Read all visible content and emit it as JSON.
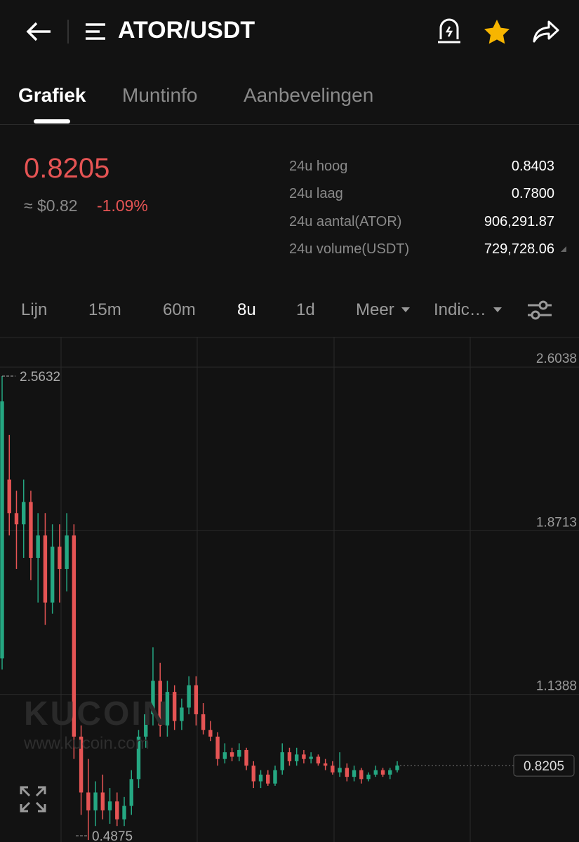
{
  "header": {
    "title": "ATOR/USDT"
  },
  "tabs": [
    "Grafiek",
    "Muntinfo",
    "Aanbevelingen"
  ],
  "price": {
    "last": "0.8205",
    "usd": "≈ $0.82",
    "change": "-1.09%"
  },
  "stats": [
    [
      "24u hoog",
      "0.8403"
    ],
    [
      "24u laag",
      "0.7800"
    ],
    [
      "24u aantal(ATOR)",
      "906,291.87"
    ],
    [
      "24u volume(USDT)",
      "729,728.06"
    ]
  ],
  "intervals": [
    "Lijn",
    "15m",
    "60m",
    "8u",
    "1d",
    "Meer",
    "Indic…"
  ],
  "watermark": {
    "brand": "KUCOIN",
    "url": "www.kucoin.com"
  },
  "chart_data": {
    "type": "candlestick",
    "ylim": [
      0.4785,
      2.739
    ],
    "yticks": [
      2.6038,
      1.8713,
      1.1388
    ],
    "grid": true,
    "up_color": "#25a782",
    "down_color": "#e55454",
    "open": [
      1.3,
      2.1,
      1.95,
      1.9,
      2.0,
      1.75,
      1.85,
      1.55,
      1.8,
      1.7,
      1.85,
      0.95,
      0.7,
      0.62,
      0.7,
      0.62,
      0.66,
      0.58,
      0.64,
      0.76,
      0.95,
      1.05,
      1.2,
      1.0,
      1.15,
      1.02,
      1.08,
      1.18,
      1.05,
      0.98,
      0.95,
      0.85,
      0.88,
      0.86,
      0.89,
      0.82,
      0.75,
      0.78,
      0.74,
      0.8,
      0.88,
      0.84,
      0.87,
      0.85,
      0.86,
      0.83,
      0.82,
      0.79,
      0.81,
      0.77,
      0.8,
      0.76,
      0.78,
      0.8,
      0.78,
      0.8
    ],
    "high": [
      2.5632,
      2.3,
      2.05,
      2.1,
      2.05,
      1.95,
      1.95,
      1.9,
      1.9,
      1.95,
      1.9,
      1.0,
      0.85,
      0.75,
      0.78,
      0.72,
      0.7,
      0.68,
      0.8,
      0.98,
      1.1,
      1.35,
      1.28,
      1.2,
      1.18,
      1.12,
      1.22,
      1.22,
      1.1,
      1.02,
      0.97,
      0.92,
      0.9,
      0.92,
      0.9,
      0.84,
      0.8,
      0.8,
      0.82,
      0.92,
      0.9,
      0.9,
      0.89,
      0.88,
      0.87,
      0.85,
      0.84,
      0.88,
      0.83,
      0.82,
      0.81,
      0.79,
      0.82,
      0.81,
      0.81,
      0.84
    ],
    "low": [
      1.25,
      1.85,
      1.7,
      1.75,
      1.65,
      1.55,
      1.45,
      1.5,
      1.55,
      1.6,
      0.85,
      0.6,
      0.4875,
      0.55,
      0.58,
      0.56,
      0.55,
      0.55,
      0.6,
      0.72,
      0.9,
      1.0,
      0.95,
      0.95,
      0.98,
      0.98,
      1.05,
      1.0,
      0.96,
      0.93,
      0.82,
      0.83,
      0.84,
      0.84,
      0.8,
      0.72,
      0.72,
      0.73,
      0.73,
      0.78,
      0.82,
      0.82,
      0.83,
      0.83,
      0.82,
      0.8,
      0.78,
      0.77,
      0.75,
      0.75,
      0.74,
      0.75,
      0.77,
      0.77,
      0.76,
      0.79
    ],
    "close": [
      2.45,
      1.95,
      1.9,
      2.0,
      1.75,
      1.85,
      1.55,
      1.8,
      1.7,
      1.85,
      0.95,
      0.7,
      0.62,
      0.7,
      0.62,
      0.66,
      0.58,
      0.64,
      0.76,
      0.95,
      1.05,
      1.2,
      1.0,
      1.15,
      1.02,
      1.08,
      1.18,
      1.05,
      0.98,
      0.95,
      0.85,
      0.88,
      0.86,
      0.89,
      0.82,
      0.75,
      0.78,
      0.74,
      0.8,
      0.88,
      0.84,
      0.87,
      0.85,
      0.86,
      0.83,
      0.82,
      0.79,
      0.81,
      0.77,
      0.8,
      0.76,
      0.78,
      0.8,
      0.78,
      0.8,
      0.8205
    ],
    "last_price": 0.8205,
    "max_label": 2.5632,
    "min_label": 0.4875
  }
}
